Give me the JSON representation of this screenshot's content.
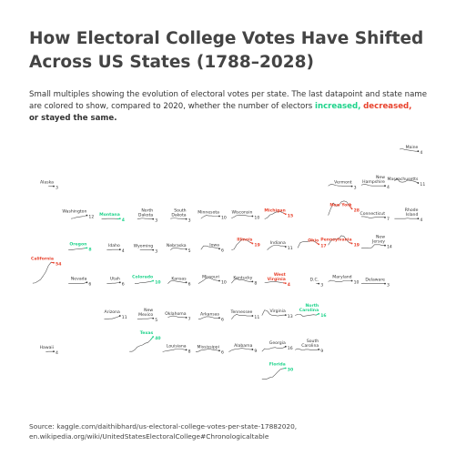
{
  "title": "How Electoral College Votes Have Shifted Across US States (1788–2028)",
  "subtitle": {
    "text": "Small multiples showing the evolution of electoral votes per state. The last datapoint and state name are colored to show, compared to 2020, whether the number of electors",
    "increased": "increased,",
    "decreased": "decreased,",
    "same": "or stayed the same."
  },
  "colors": {
    "increased": "#1ed38b",
    "decreased": "#e8432e",
    "same": "#333333"
  },
  "source": [
    "Source: kaggle.com/daithibhard/us-electoral-college-votes-per-state-17882020,",
    "en.wikipedia.org/wiki/UnitedStatesElectoralCollege#Chronologicaltable"
  ],
  "states": [
    {
      "name": "Maine",
      "change": "same",
      "values": [
        9,
        10,
        8,
        7,
        6,
        5,
        4,
        4
      ]
    },
    {
      "name": "Vermont",
      "change": "same",
      "values": [
        4,
        8,
        7,
        5,
        4,
        4,
        3,
        3,
        3,
        3
      ]
    },
    {
      "name": "New Hampshire",
      "change": "same",
      "values": [
        6,
        8,
        7,
        5,
        4,
        4,
        4,
        4,
        4,
        4
      ]
    },
    {
      "name": "Massachusetts",
      "change": "same",
      "values": [
        16,
        22,
        14,
        13,
        14,
        18,
        17,
        16,
        14,
        11
      ]
    },
    {
      "name": "Alaska",
      "change": "same",
      "values": [
        3,
        3,
        3
      ]
    },
    {
      "name": "Washington",
      "change": "same",
      "values": [
        4,
        5,
        7,
        8,
        9,
        10,
        12
      ]
    },
    {
      "name": "Montana",
      "change": "increased",
      "values": [
        3,
        3,
        4,
        4,
        4,
        4,
        3,
        4
      ]
    },
    {
      "name": "North Dakota",
      "change": "same",
      "values": [
        3,
        4,
        5,
        4,
        4,
        3,
        3
      ]
    },
    {
      "name": "South Dakota",
      "change": "same",
      "values": [
        4,
        5,
        5,
        4,
        4,
        3,
        3
      ]
    },
    {
      "name": "Minnesota",
      "change": "same",
      "values": [
        4,
        9,
        12,
        11,
        11,
        10,
        10,
        10
      ]
    },
    {
      "name": "Wisconsin",
      "change": "same",
      "values": [
        5,
        8,
        12,
        13,
        12,
        12,
        11,
        10,
        10
      ]
    },
    {
      "name": "Michigan",
      "change": "decreased",
      "values": [
        3,
        6,
        13,
        15,
        19,
        21,
        21,
        18,
        15
      ]
    },
    {
      "name": "New York",
      "change": "decreased",
      "values": [
        12,
        29,
        42,
        35,
        36,
        45,
        47,
        45,
        36,
        28
      ]
    },
    {
      "name": "Connecticut",
      "change": "same",
      "values": [
        9,
        9,
        8,
        6,
        6,
        7,
        8,
        8,
        8,
        7
      ]
    },
    {
      "name": "Rhode Island",
      "change": "same",
      "values": [
        4,
        4,
        4,
        4,
        4,
        5,
        4,
        4,
        4,
        4
      ]
    },
    {
      "name": "Oregon",
      "change": "increased",
      "values": [
        3,
        3,
        4,
        5,
        6,
        6,
        7,
        8
      ]
    },
    {
      "name": "Idaho",
      "change": "same",
      "values": [
        3,
        3,
        4,
        4,
        4,
        4
      ]
    },
    {
      "name": "Wyoming",
      "change": "same",
      "values": [
        3,
        3,
        3,
        3,
        3,
        3
      ]
    },
    {
      "name": "Nebraska",
      "change": "same",
      "values": [
        3,
        8,
        8,
        7,
        6,
        5,
        5
      ]
    },
    {
      "name": "Iowa",
      "change": "same",
      "values": [
        4,
        13,
        13,
        11,
        10,
        9,
        8,
        6
      ]
    },
    {
      "name": "Illinois",
      "change": "decreased",
      "values": [
        3,
        5,
        16,
        22,
        29,
        29,
        26,
        22,
        19
      ]
    },
    {
      "name": "Indiana",
      "change": "same",
      "values": [
        3,
        9,
        13,
        15,
        15,
        13,
        13,
        11
      ]
    },
    {
      "name": "Ohio",
      "change": "decreased",
      "values": [
        8,
        21,
        23,
        23,
        24,
        26,
        25,
        21,
        17
      ]
    },
    {
      "name": "Pennsylvania",
      "change": "decreased",
      "values": [
        15,
        25,
        30,
        29,
        30,
        38,
        36,
        27,
        21,
        19
      ]
    },
    {
      "name": "New Jersey",
      "change": "same",
      "values": [
        7,
        8,
        8,
        7,
        9,
        16,
        16,
        16,
        14,
        14
      ]
    },
    {
      "name": "California",
      "change": "decreased",
      "values": [
        4,
        5,
        9,
        13,
        22,
        32,
        47,
        55,
        54
      ]
    },
    {
      "name": "Nevada",
      "change": "same",
      "values": [
        3,
        3,
        3,
        3,
        3,
        3,
        4,
        6
      ]
    },
    {
      "name": "Utah",
      "change": "same",
      "values": [
        3,
        3,
        4,
        4,
        5,
        6
      ]
    },
    {
      "name": "Colorado",
      "change": "increased",
      "values": [
        3,
        3,
        5,
        6,
        6,
        7,
        8,
        10
      ]
    },
    {
      "name": "Kansas",
      "change": "same",
      "values": [
        3,
        9,
        10,
        9,
        8,
        7,
        6,
        6
      ]
    },
    {
      "name": "Missouri",
      "change": "same",
      "values": [
        3,
        7,
        11,
        16,
        18,
        15,
        12,
        11,
        10
      ]
    },
    {
      "name": "Kentucky",
      "change": "same",
      "values": [
        4,
        12,
        15,
        12,
        13,
        11,
        9,
        8,
        8
      ]
    },
    {
      "name": "West Virginia",
      "change": "decreased",
      "values": [
        5,
        6,
        7,
        8,
        8,
        7,
        6,
        5,
        4
      ]
    },
    {
      "name": "D.C.",
      "change": "same",
      "values": [
        3,
        3
      ]
    },
    {
      "name": "Maryland",
      "change": "same",
      "values": [
        8,
        11,
        10,
        8,
        8,
        8,
        10,
        10,
        10,
        10
      ]
    },
    {
      "name": "Delaware",
      "change": "same",
      "values": [
        3,
        4,
        3,
        3,
        3,
        3,
        3,
        3,
        3,
        3
      ]
    },
    {
      "name": "Arizona",
      "change": "same",
      "values": [
        3,
        3,
        4,
        4,
        6,
        8,
        11
      ]
    },
    {
      "name": "New Mexico",
      "change": "same",
      "values": [
        3,
        3,
        4,
        4,
        4,
        5,
        5
      ]
    },
    {
      "name": "Oklahoma",
      "change": "same",
      "values": [
        7,
        10,
        11,
        10,
        8,
        8,
        7,
        7
      ]
    },
    {
      "name": "Arkansas",
      "change": "same",
      "values": [
        3,
        4,
        7,
        9,
        9,
        8,
        6,
        6,
        6
      ]
    },
    {
      "name": "Tennessee",
      "change": "same",
      "values": [
        3,
        11,
        15,
        12,
        12,
        12,
        11,
        11,
        11
      ]
    },
    {
      "name": "Virginia",
      "change": "same",
      "values": [
        12,
        25,
        23,
        15,
        12,
        12,
        11,
        12,
        13,
        13
      ]
    },
    {
      "name": "North Carolina",
      "change": "increased",
      "values": [
        12,
        15,
        15,
        10,
        11,
        12,
        13,
        14,
        13,
        16
      ]
    },
    {
      "name": "Hawaii",
      "change": "same",
      "values": [
        3,
        4,
        4,
        4
      ]
    },
    {
      "name": "Texas",
      "change": "increased",
      "values": [
        4,
        4,
        8,
        15,
        18,
        20,
        24,
        26,
        32,
        40
      ]
    },
    {
      "name": "Louisiana",
      "change": "same",
      "values": [
        3,
        5,
        6,
        7,
        8,
        10,
        10,
        10,
        9,
        8
      ]
    },
    {
      "name": "Mississippi",
      "change": "same",
      "values": [
        3,
        4,
        7,
        8,
        9,
        10,
        9,
        8,
        7,
        6
      ]
    },
    {
      "name": "Alabama",
      "change": "same",
      "values": [
        3,
        7,
        9,
        10,
        11,
        12,
        11,
        10,
        9,
        9
      ]
    },
    {
      "name": "Georgia",
      "change": "same",
      "values": [
        4,
        11,
        10,
        11,
        13,
        14,
        12,
        12,
        13,
        16
      ]
    },
    {
      "name": "South Carolina",
      "change": "same",
      "values": [
        8,
        11,
        9,
        7,
        9,
        9,
        8,
        8,
        8,
        9
      ]
    },
    {
      "name": "Florida",
      "change": "increased",
      "values": [
        3,
        3,
        4,
        7,
        8,
        14,
        21,
        27,
        29,
        30
      ]
    }
  ]
}
